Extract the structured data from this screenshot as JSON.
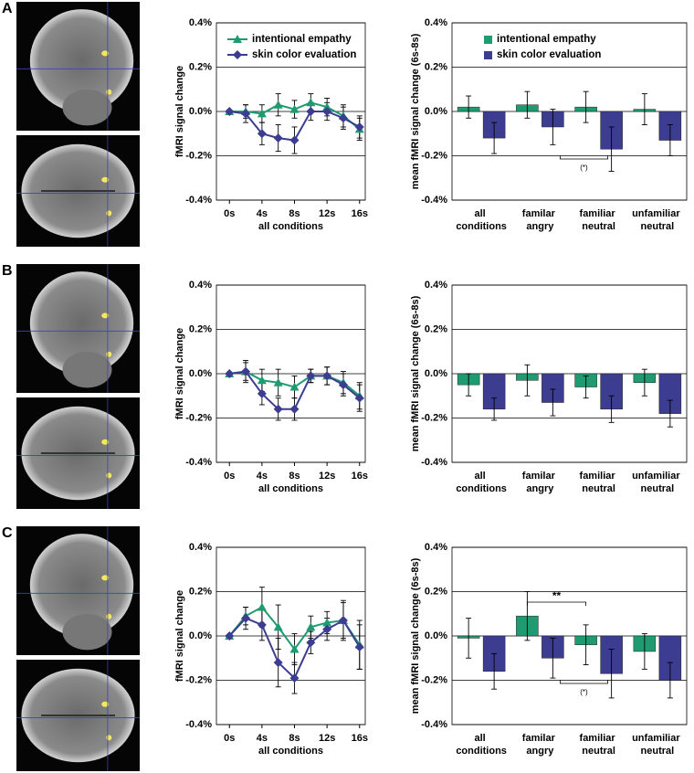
{
  "panel_labels": [
    "A",
    "B",
    "C"
  ],
  "chart_data": [
    {
      "type": "line",
      "ylabel": "fMRI signal change",
      "xlabel": "all conditions",
      "legend": "upper left",
      "x": [
        0,
        2,
        4,
        6,
        8,
        10,
        12,
        14,
        16
      ],
      "xlim": [
        -1.6,
        16.7
      ],
      "xticks": [
        {
          "value": 0,
          "label": "0s"
        },
        {
          "value": 4,
          "label": "4s"
        },
        {
          "value": 8,
          "label": "8s"
        },
        {
          "value": 12,
          "label": "12s"
        },
        {
          "value": 16,
          "label": "16s"
        }
      ],
      "ylim": [
        -0.4,
        0.4
      ],
      "yticks": [
        {
          "value": -0.4,
          "label": "-0.4%"
        },
        {
          "value": -0.2,
          "label": "-0.2%"
        },
        {
          "value": 0,
          "label": "0.0%"
        },
        {
          "value": 0.2,
          "label": "0.2%"
        },
        {
          "value": 0.4,
          "label": "0.4%"
        }
      ],
      "grid": true,
      "series": [
        {
          "name": "intentional empathy",
          "color": "#1f9b72",
          "marker": "triangle",
          "values": [
            0,
            0.0,
            -0.01,
            0.03,
            0.01,
            0.04,
            0.02,
            -0.02,
            -0.08
          ],
          "errors": [
            0,
            0.03,
            0.04,
            0.05,
            0.04,
            0.04,
            0.04,
            0.05,
            0.05
          ]
        },
        {
          "name": "skin color evaluation",
          "color": "#3c3c91",
          "marker": "diamond",
          "values": [
            0,
            -0.01,
            -0.1,
            -0.12,
            -0.13,
            0.0,
            0.0,
            -0.03,
            -0.07
          ],
          "errors": [
            0,
            0.04,
            0.05,
            0.06,
            0.06,
            0.04,
            0.04,
            0.05,
            0.05
          ]
        }
      ]
    },
    {
      "type": "bar",
      "ylabel": "mean fMRI signal change (6s-8s)",
      "legend": "upper left",
      "categories": [
        "all conditions",
        "familar angry",
        "familiar neutral",
        "unfamiliar neutral"
      ],
      "ylim": [
        -0.4,
        0.4
      ],
      "yticks": [
        {
          "value": -0.4,
          "label": "-0.4%"
        },
        {
          "value": -0.2,
          "label": "-0.2%"
        },
        {
          "value": 0,
          "label": "0.0%"
        },
        {
          "value": 0.2,
          "label": "0.2%"
        },
        {
          "value": 0.4,
          "label": "0.4%"
        }
      ],
      "grid": true,
      "series": [
        {
          "name": "intentional empathy",
          "color": "#1f9b72",
          "values": [
            0.02,
            0.03,
            0.02,
            0.01
          ],
          "errors": [
            0.05,
            0.06,
            0.07,
            0.07
          ]
        },
        {
          "name": "skin color evaluation",
          "color": "#3c3c91",
          "values": [
            -0.12,
            -0.07,
            -0.17,
            -0.13
          ],
          "errors": [
            0.07,
            0.08,
            0.1,
            0.07
          ]
        }
      ],
      "annotations": [
        "(*)"
      ]
    },
    {
      "type": "line",
      "ylabel": "fMRI signal change",
      "xlabel": "all conditions",
      "x": [
        0,
        2,
        4,
        6,
        8,
        10,
        12,
        14,
        16
      ],
      "xlim": [
        -1.6,
        16.7
      ],
      "xticks": [
        {
          "value": 0,
          "label": "0s"
        },
        {
          "value": 4,
          "label": "4s"
        },
        {
          "value": 8,
          "label": "8s"
        },
        {
          "value": 12,
          "label": "12s"
        },
        {
          "value": 16,
          "label": "16s"
        }
      ],
      "ylim": [
        -0.4,
        0.4
      ],
      "yticks": [
        {
          "value": -0.4,
          "label": "-0.4%"
        },
        {
          "value": -0.2,
          "label": "-0.2%"
        },
        {
          "value": 0,
          "label": "0.0%"
        },
        {
          "value": 0.2,
          "label": "0.2%"
        },
        {
          "value": 0.4,
          "label": "0.4%"
        }
      ],
      "grid": true,
      "series": [
        {
          "color": "#1f9b72",
          "marker": "triangle",
          "values": [
            0,
            0.01,
            -0.03,
            -0.04,
            -0.06,
            -0.01,
            -0.01,
            -0.04,
            -0.1
          ],
          "errors": [
            0,
            0.04,
            0.05,
            0.06,
            0.05,
            0.03,
            0.04,
            0.05,
            0.06
          ]
        },
        {
          "color": "#3c3c91",
          "marker": "diamond",
          "values": [
            0,
            0.01,
            -0.09,
            -0.16,
            -0.16,
            -0.01,
            -0.01,
            -0.05,
            -0.11
          ],
          "errors": [
            0,
            0.05,
            0.05,
            0.05,
            0.05,
            0.03,
            0.04,
            0.05,
            0.06
          ]
        }
      ]
    },
    {
      "type": "bar",
      "ylabel": "mean fMRI signal change (6s-8s)",
      "categories": [
        "all conditions",
        "familar angry",
        "familiar neutral",
        "unfamiliar neutral"
      ],
      "ylim": [
        -0.4,
        0.4
      ],
      "yticks": [
        {
          "value": -0.4,
          "label": "-0.4%"
        },
        {
          "value": -0.2,
          "label": "-0.2%"
        },
        {
          "value": 0,
          "label": "0.0%"
        },
        {
          "value": 0.2,
          "label": "0.2%"
        },
        {
          "value": 0.4,
          "label": "0.4%"
        }
      ],
      "grid": true,
      "series": [
        {
          "color": "#1f9b72",
          "values": [
            -0.05,
            -0.03,
            -0.06,
            -0.04
          ],
          "errors": [
            0.05,
            0.07,
            0.05,
            0.06
          ]
        },
        {
          "color": "#3c3c91",
          "values": [
            -0.16,
            -0.13,
            -0.16,
            -0.18
          ],
          "errors": [
            0.05,
            0.06,
            0.06,
            0.06
          ]
        }
      ]
    },
    {
      "type": "line",
      "ylabel": "fMRI signal change",
      "xlabel": "all conditions",
      "x": [
        0,
        2,
        4,
        6,
        8,
        10,
        12,
        14,
        16
      ],
      "xlim": [
        -1.6,
        16.7
      ],
      "xticks": [
        {
          "value": 0,
          "label": "0s"
        },
        {
          "value": 4,
          "label": "4s"
        },
        {
          "value": 8,
          "label": "8s"
        },
        {
          "value": 12,
          "label": "12s"
        },
        {
          "value": 16,
          "label": "16s"
        }
      ],
      "ylim": [
        -0.4,
        0.4
      ],
      "yticks": [
        {
          "value": -0.4,
          "label": "-0.4%"
        },
        {
          "value": -0.2,
          "label": "-0.2%"
        },
        {
          "value": 0,
          "label": "0.0%"
        },
        {
          "value": 0.2,
          "label": "0.2%"
        },
        {
          "value": 0.4,
          "label": "0.4%"
        }
      ],
      "grid": true,
      "series": [
        {
          "color": "#1f9b72",
          "marker": "triangle",
          "values": [
            0,
            0.09,
            0.13,
            0.04,
            -0.06,
            0.04,
            0.06,
            0.07,
            -0.04
          ],
          "errors": [
            0,
            0.04,
            0.09,
            0.1,
            0.07,
            0.05,
            0.05,
            0.08,
            0.11
          ]
        },
        {
          "color": "#3c3c91",
          "marker": "diamond",
          "values": [
            0,
            0.08,
            0.05,
            -0.12,
            -0.19,
            -0.03,
            0.03,
            0.07,
            -0.05
          ],
          "errors": [
            0,
            0.05,
            0.07,
            0.11,
            0.07,
            0.05,
            0.05,
            0.09,
            0.1
          ]
        }
      ]
    },
    {
      "type": "bar",
      "ylabel": "mean fMRI signal change (6s-8s)",
      "categories": [
        "all conditions",
        "familar angry",
        "familiar neutral",
        "unfamiliar neutral"
      ],
      "ylim": [
        -0.4,
        0.4
      ],
      "yticks": [
        {
          "value": -0.4,
          "label": "-0.4%"
        },
        {
          "value": -0.2,
          "label": "-0.2%"
        },
        {
          "value": 0,
          "label": "0.0%"
        },
        {
          "value": 0.2,
          "label": "0.2%"
        },
        {
          "value": 0.4,
          "label": "0.4%"
        }
      ],
      "grid": true,
      "series": [
        {
          "color": "#1f9b72",
          "values": [
            -0.01,
            0.09,
            -0.04,
            -0.07
          ],
          "errors": [
            0.09,
            0.11,
            0.09,
            0.08
          ]
        },
        {
          "color": "#3c3c91",
          "values": [
            -0.16,
            -0.1,
            -0.17,
            -0.2
          ],
          "errors": [
            0.08,
            0.09,
            0.11,
            0.08
          ]
        }
      ],
      "annotations": [
        "**",
        "(*)"
      ]
    }
  ]
}
